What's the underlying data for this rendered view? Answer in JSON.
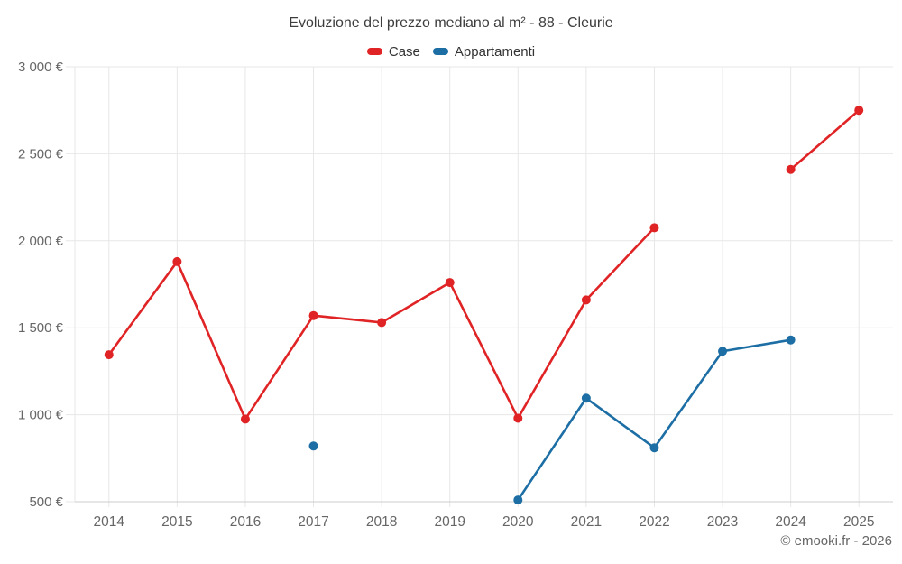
{
  "chart_data": {
    "type": "line",
    "title": "Evoluzione del prezzo mediano al m² - 88 - Cleurie",
    "xlabel": "",
    "ylabel": "",
    "categories": [
      "2014",
      "2015",
      "2016",
      "2017",
      "2018",
      "2019",
      "2020",
      "2021",
      "2022",
      "2023",
      "2024",
      "2025"
    ],
    "series": [
      {
        "name": "Case",
        "color": "#e02426",
        "values": [
          1345,
          1880,
          975,
          1570,
          1530,
          1760,
          980,
          1660,
          2075,
          null,
          2410,
          2750
        ]
      },
      {
        "name": "Appartamenti",
        "color": "#1c6ea4",
        "values": [
          null,
          null,
          null,
          820,
          null,
          null,
          510,
          1095,
          810,
          1365,
          1430,
          null
        ]
      }
    ],
    "ylim": [
      500,
      3000
    ],
    "yticks": [
      {
        "value": 500,
        "label": "500 €"
      },
      {
        "value": 1000,
        "label": "1 000 €"
      },
      {
        "value": 1500,
        "label": "1 500 €"
      },
      {
        "value": 2000,
        "label": "2 000 €"
      },
      {
        "value": 2500,
        "label": "2 500 €"
      },
      {
        "value": 3000,
        "label": "3 000 €"
      }
    ],
    "grid": true,
    "legend_position": "top",
    "credit": "© emooki.fr - 2026"
  },
  "colors": {
    "grid": "#e7e7e7",
    "axis_line": "#cccccc",
    "tick_text": "#666666",
    "title_text": "#3d3d3d"
  }
}
